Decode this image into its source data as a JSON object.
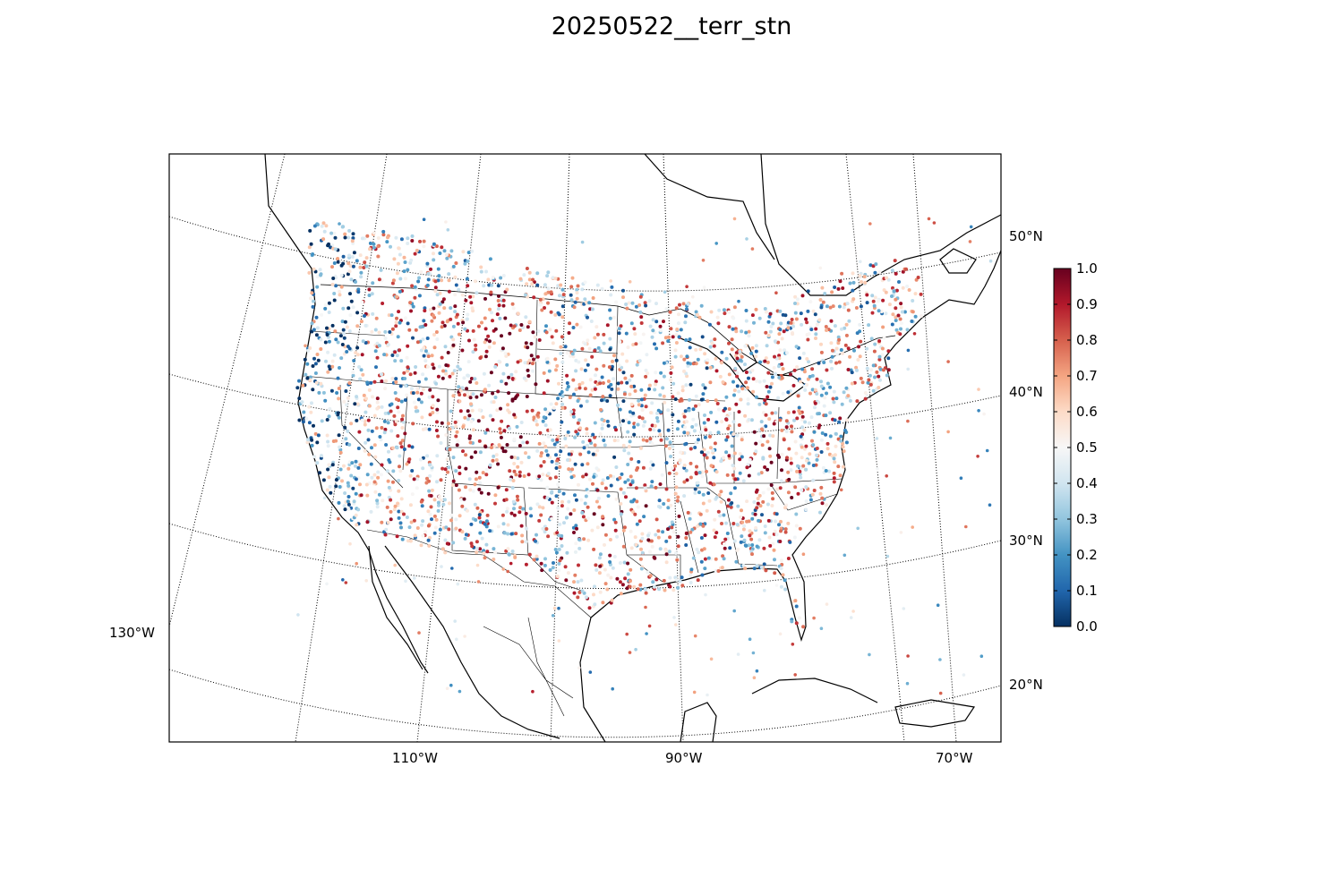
{
  "title": "20250522__terr_stn",
  "map": {
    "lat_labels": [
      "50°N",
      "40°N",
      "30°N",
      "20°N"
    ],
    "lon_labels": [
      "130°W",
      "110°W",
      "90°W",
      "70°W"
    ]
  },
  "colorbar": {
    "colormap": "RdBu_r",
    "range": [
      0.0,
      1.0
    ],
    "tick_labels": [
      "1.0",
      "0.9",
      "0.8",
      "0.7",
      "0.6",
      "0.5",
      "0.4",
      "0.3",
      "0.2",
      "0.1",
      "0.0"
    ],
    "colors": [
      "#053061",
      "#2166ac",
      "#4393c3",
      "#92c5de",
      "#d1e5f0",
      "#f7f7f7",
      "#fddbc7",
      "#f4a582",
      "#d6604d",
      "#b2182b",
      "#67001f"
    ]
  }
}
